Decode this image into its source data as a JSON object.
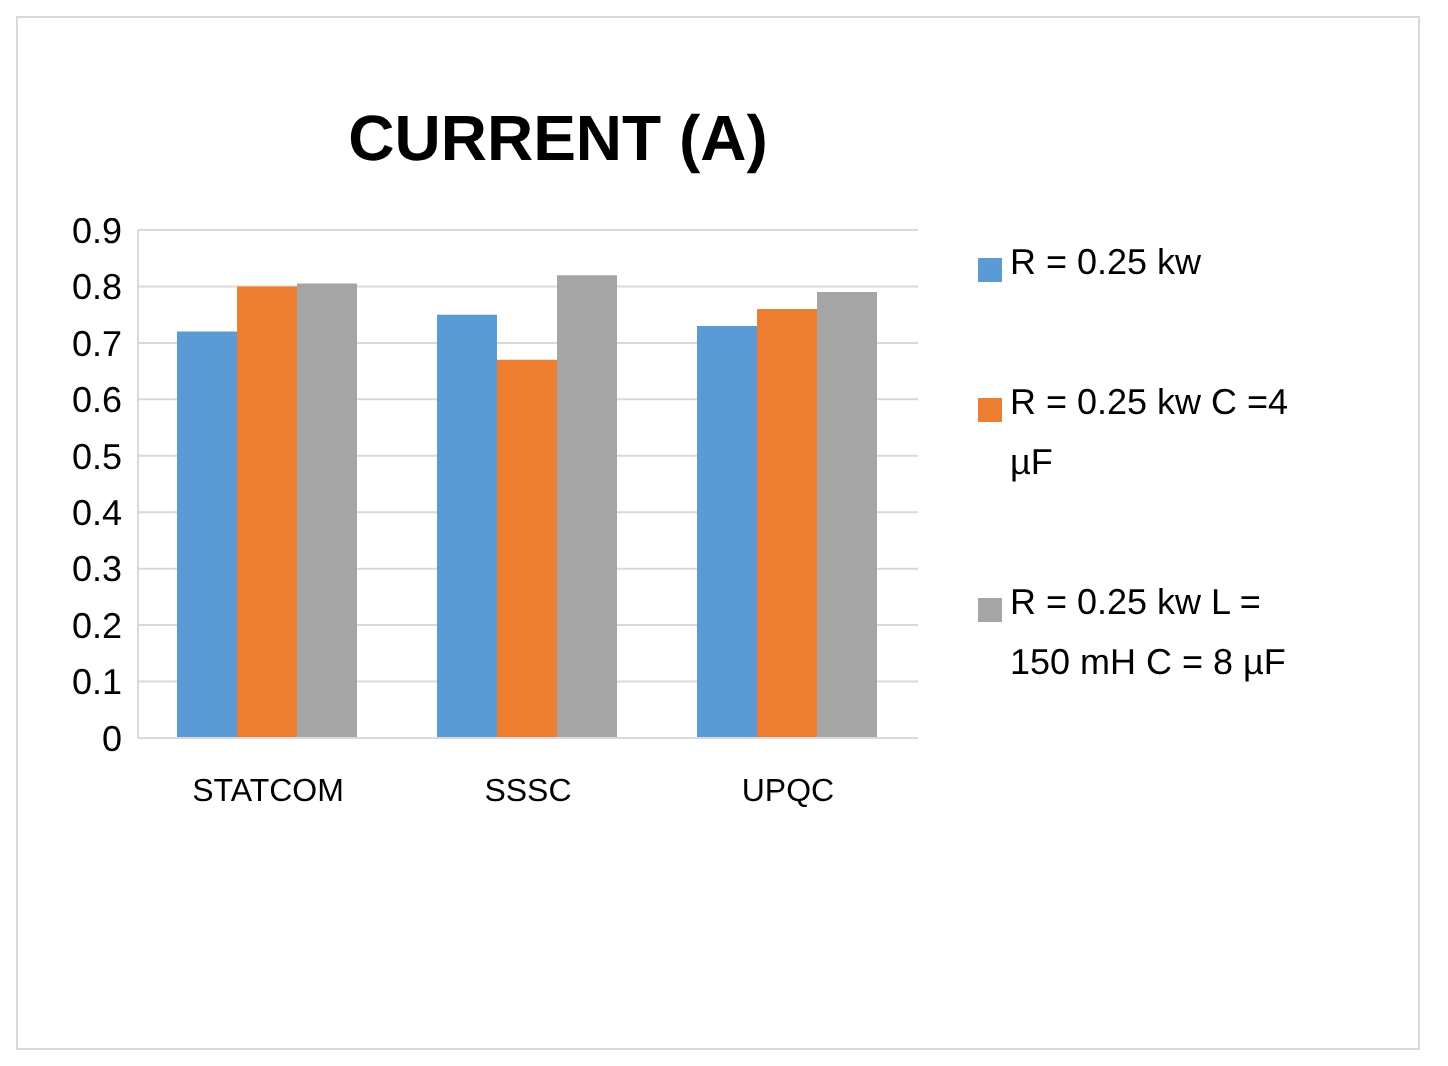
{
  "chart_data": {
    "type": "bar",
    "title": "CURRENT (A)",
    "categories": [
      "STATCOM",
      "SSSC",
      "UPQC"
    ],
    "series": [
      {
        "name": "R = 0.25 kw",
        "color": "#5b9bd5",
        "values": [
          0.72,
          0.75,
          0.73
        ]
      },
      {
        "name": "R = 0.25 kw  C =4 µF",
        "color": "#ed7d31",
        "values": [
          0.8,
          0.67,
          0.76
        ]
      },
      {
        "name": "R = 0.25 kw L = 150 mH C = 8 µF",
        "color": "#a5a5a5",
        "values": [
          0.805,
          0.82,
          0.79
        ]
      }
    ],
    "ylim": [
      0,
      0.9
    ],
    "yticks": [
      0,
      0.1,
      0.2,
      0.3,
      0.4,
      0.5,
      0.6,
      0.7,
      0.8,
      0.9
    ],
    "grid": "y",
    "legend": "right"
  }
}
